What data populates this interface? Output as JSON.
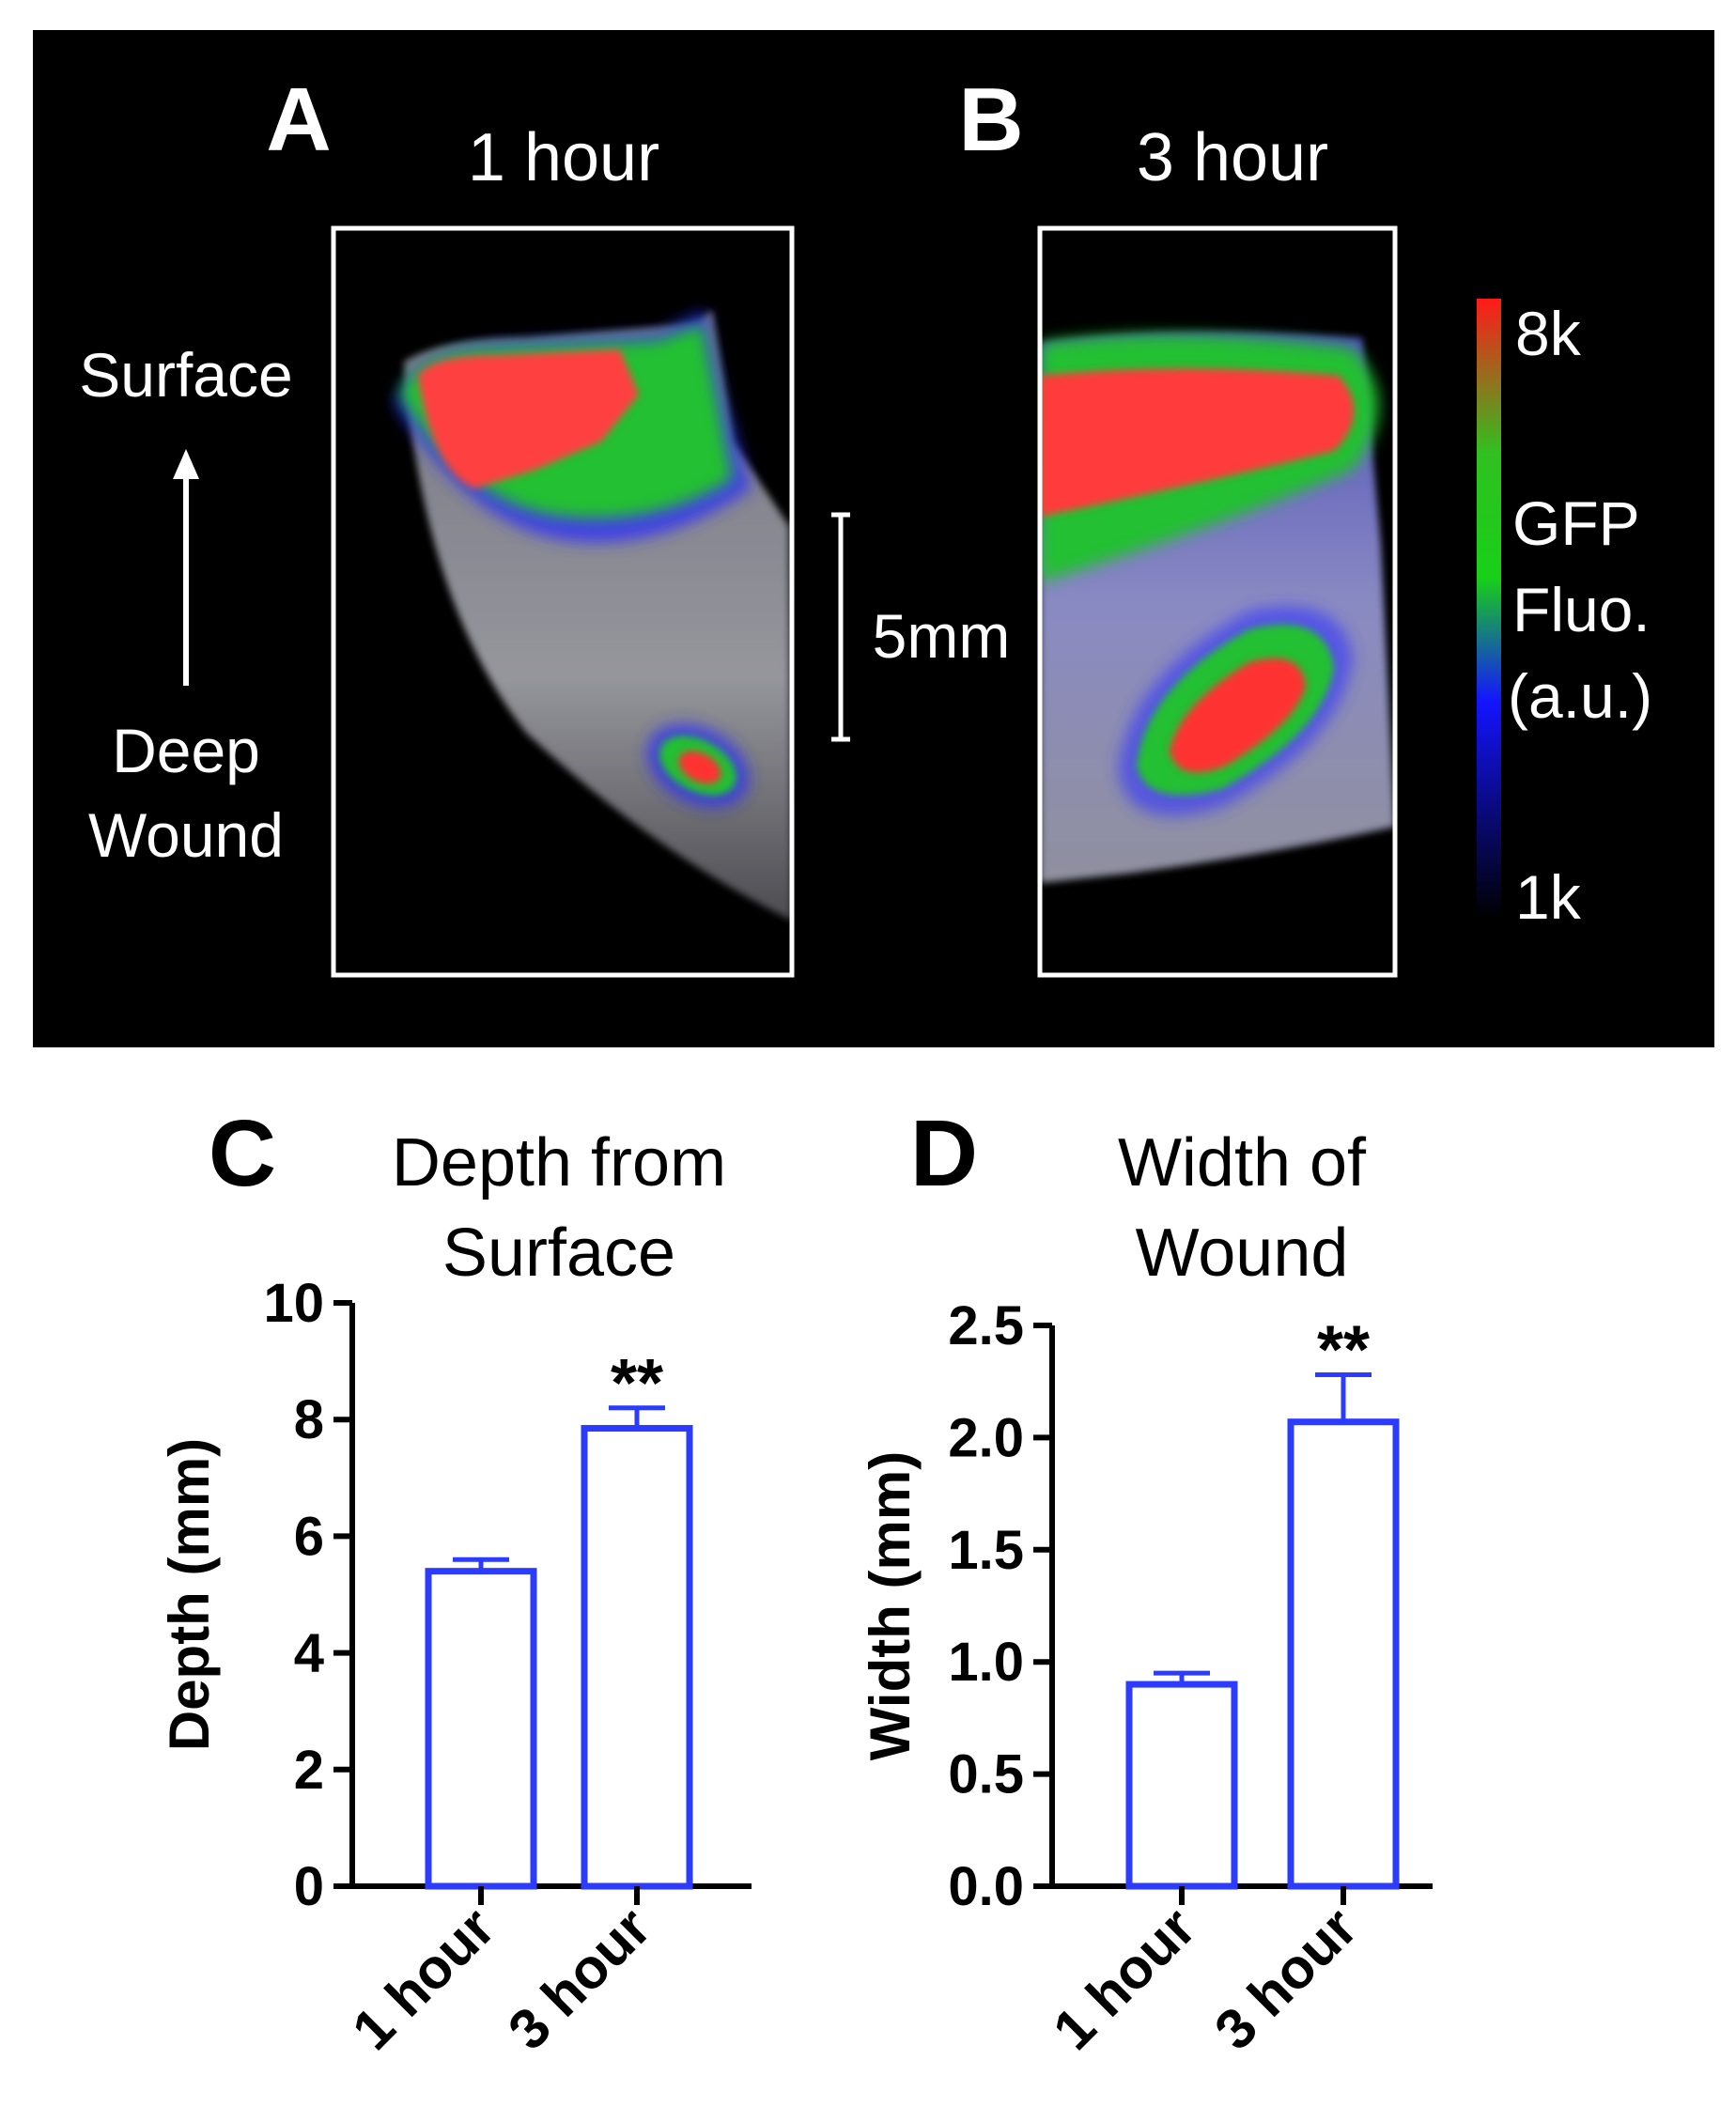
{
  "panels": {
    "A": {
      "letter": "A",
      "title": "1 hour",
      "side_top": "Surface",
      "side_bottom_1": "Deep",
      "side_bottom_2": "Wound"
    },
    "B": {
      "letter": "B",
      "title": "3 hour"
    },
    "scale_bar_label": "5mm",
    "colorbar": {
      "max_label": "8k",
      "min_label": "1k",
      "title_lines": [
        "GFP",
        "Fluo.",
        "(a.u.)"
      ],
      "colors": [
        "#000000",
        "#1010ff",
        "#20c020",
        "#ff2020"
      ]
    },
    "C": {
      "letter": "C",
      "title_lines": [
        "Depth from",
        "Surface"
      ]
    },
    "D": {
      "letter": "D",
      "title_lines": [
        "Width of",
        "Wound"
      ]
    }
  },
  "chart_data": [
    {
      "type": "bar",
      "panel": "C",
      "title": "Depth from Surface",
      "ylabel": "Depth (mm)",
      "xlabel": "",
      "categories": [
        "1 hour",
        "3 hour"
      ],
      "values": [
        5.4,
        7.85
      ],
      "error": [
        0.2,
        0.35
      ],
      "annotations": [
        "",
        "**"
      ],
      "ylim": [
        0,
        10
      ],
      "yticks": [
        0,
        2,
        4,
        6,
        8,
        10
      ],
      "ytick_labels": [
        "0",
        "2",
        "4",
        "6",
        "8",
        "10"
      ],
      "bar_color": "#2b3bff",
      "grid": false
    },
    {
      "type": "bar",
      "panel": "D",
      "title": "Width of Wound",
      "ylabel": "Width (mm)",
      "xlabel": "",
      "categories": [
        "1 hour",
        "3 hour"
      ],
      "values": [
        0.9,
        2.07
      ],
      "error": [
        0.05,
        0.21
      ],
      "annotations": [
        "",
        "**"
      ],
      "ylim": [
        0,
        2.5
      ],
      "yticks": [
        0,
        0.5,
        1.0,
        1.5,
        2.0,
        2.5
      ],
      "ytick_labels": [
        "0.0",
        "0.5",
        "1.0",
        "1.5",
        "2.0",
        "2.5"
      ],
      "bar_color": "#2b3bff",
      "grid": false
    }
  ]
}
